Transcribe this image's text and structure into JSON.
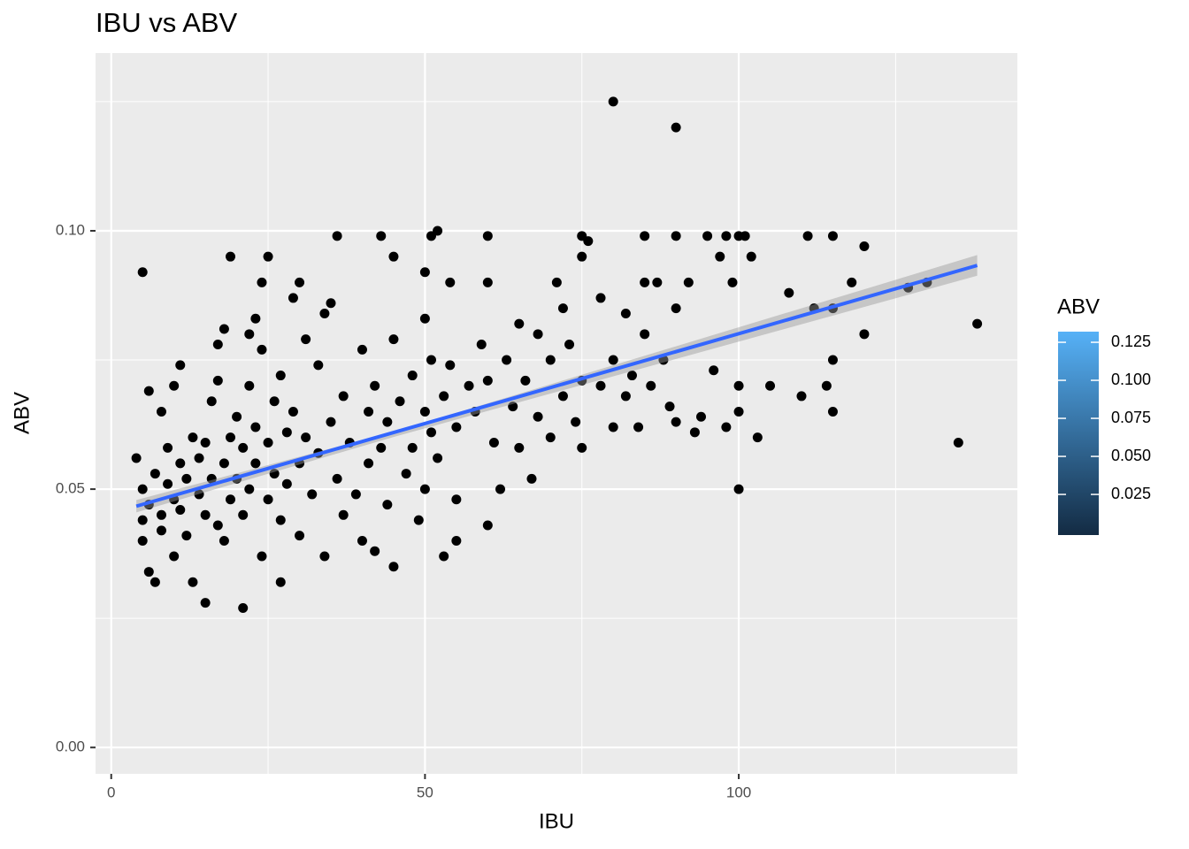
{
  "chart_data": {
    "type": "scatter",
    "title": "IBU vs ABV",
    "x_label": "IBU",
    "y_label": "ABV",
    "x": [
      4,
      5,
      6,
      6,
      7,
      5,
      5,
      5,
      6,
      7,
      8,
      8,
      8,
      9,
      9,
      10,
      10,
      10,
      11,
      11,
      11,
      12,
      12,
      13,
      13,
      14,
      14,
      15,
      15,
      15,
      16,
      16,
      17,
      17,
      17,
      18,
      18,
      18,
      19,
      19,
      19,
      20,
      20,
      21,
      21,
      21,
      22,
      22,
      22,
      23,
      23,
      23,
      24,
      24,
      24,
      25,
      25,
      25,
      26,
      26,
      27,
      27,
      27,
      28,
      28,
      29,
      29,
      30,
      30,
      30,
      31,
      31,
      32,
      33,
      33,
      34,
      34,
      35,
      35,
      36,
      36,
      37,
      37,
      38,
      39,
      40,
      40,
      41,
      41,
      42,
      42,
      43,
      43,
      44,
      44,
      45,
      45,
      45,
      46,
      47,
      48,
      48,
      49,
      50,
      50,
      50,
      50,
      51,
      51,
      51,
      52,
      52,
      53,
      53,
      54,
      54,
      55,
      55,
      55,
      57,
      58,
      59,
      60,
      60,
      60,
      60,
      61,
      62,
      63,
      64,
      65,
      65,
      66,
      67,
      68,
      68,
      70,
      70,
      71,
      72,
      72,
      73,
      74,
      75,
      75,
      75,
      75,
      76,
      78,
      78,
      80,
      80,
      80,
      82,
      82,
      83,
      84,
      85,
      85,
      85,
      86,
      87,
      88,
      89,
      90,
      90,
      90,
      90,
      92,
      93,
      94,
      95,
      96,
      97,
      98,
      98,
      99,
      100,
      100,
      100,
      100,
      101,
      102,
      103,
      105,
      108,
      110,
      111,
      112,
      114,
      115,
      115,
      115,
      115,
      118,
      120,
      120,
      127,
      130,
      135,
      138
    ],
    "values": [
      0.056,
      0.092,
      0.069,
      0.034,
      0.032,
      0.05,
      0.044,
      0.04,
      0.047,
      0.053,
      0.045,
      0.065,
      0.042,
      0.051,
      0.058,
      0.07,
      0.037,
      0.048,
      0.055,
      0.074,
      0.046,
      0.041,
      0.052,
      0.032,
      0.06,
      0.049,
      0.056,
      0.028,
      0.059,
      0.045,
      0.067,
      0.052,
      0.078,
      0.043,
      0.071,
      0.081,
      0.055,
      0.04,
      0.095,
      0.06,
      0.048,
      0.064,
      0.052,
      0.027,
      0.045,
      0.058,
      0.08,
      0.07,
      0.05,
      0.083,
      0.062,
      0.055,
      0.09,
      0.037,
      0.077,
      0.095,
      0.059,
      0.048,
      0.067,
      0.053,
      0.032,
      0.072,
      0.044,
      0.061,
      0.051,
      0.087,
      0.065,
      0.09,
      0.055,
      0.041,
      0.079,
      0.06,
      0.049,
      0.074,
      0.057,
      0.084,
      0.037,
      0.086,
      0.063,
      0.099,
      0.052,
      0.068,
      0.045,
      0.059,
      0.049,
      0.077,
      0.04,
      0.065,
      0.055,
      0.038,
      0.07,
      0.099,
      0.058,
      0.063,
      0.047,
      0.095,
      0.079,
      0.035,
      0.067,
      0.053,
      0.072,
      0.058,
      0.044,
      0.092,
      0.083,
      0.065,
      0.05,
      0.099,
      0.075,
      0.061,
      0.1,
      0.056,
      0.037,
      0.068,
      0.09,
      0.074,
      0.062,
      0.04,
      0.048,
      0.07,
      0.065,
      0.078,
      0.099,
      0.09,
      0.043,
      0.071,
      0.059,
      0.05,
      0.075,
      0.066,
      0.082,
      0.058,
      0.071,
      0.052,
      0.08,
      0.064,
      0.075,
      0.06,
      0.09,
      0.085,
      0.068,
      0.078,
      0.063,
      0.099,
      0.095,
      0.071,
      0.058,
      0.098,
      0.087,
      0.07,
      0.125,
      0.075,
      0.062,
      0.084,
      0.068,
      0.072,
      0.062,
      0.099,
      0.09,
      0.08,
      0.07,
      0.09,
      0.075,
      0.066,
      0.12,
      0.099,
      0.085,
      0.063,
      0.09,
      0.061,
      0.064,
      0.099,
      0.073,
      0.095,
      0.099,
      0.062,
      0.09,
      0.099,
      0.07,
      0.05,
      0.065,
      0.099,
      0.095,
      0.06,
      0.07,
      0.088,
      0.068,
      0.099,
      0.085,
      0.07,
      0.099,
      0.085,
      0.075,
      0.065,
      0.09,
      0.097,
      0.08,
      0.089,
      0.09,
      0.059,
      0.082
    ],
    "color": "#000000",
    "trend": {
      "x": [
        4,
        138
      ],
      "y": [
        0.0467,
        0.0933
      ],
      "color": "#3366FF"
    },
    "band": {
      "x": [
        4,
        45,
        138
      ],
      "lower": [
        0.0455,
        0.0601,
        0.0913
      ],
      "upper": [
        0.0479,
        0.0611,
        0.0953
      ],
      "color": "#999999"
    },
    "xlim": [
      -2.5,
      144.4
    ],
    "ylim": [
      -0.0051,
      0.1344
    ],
    "xticks": [
      0,
      50,
      100
    ],
    "yticks": [
      {
        "value": 0,
        "label": "0.00"
      },
      {
        "value": 0.05,
        "label": "0.05"
      },
      {
        "value": 0.1,
        "label": "0.10"
      }
    ],
    "x_minor_grid": [
      25,
      75,
      125
    ],
    "y_minor_grid": [
      0.025,
      0.075,
      0.125
    ],
    "grid": true,
    "colorbar": {
      "title": "ABV",
      "lim": [
        -0.0017,
        0.132
      ],
      "colors": [
        "#132B43",
        "#56B1F7"
      ],
      "ticks": [
        0.025,
        {
          "value": 0.05,
          "label": "0.050"
        },
        0.075,
        {
          "value": 0.1,
          "label": "0.100"
        },
        0.125
      ]
    }
  }
}
